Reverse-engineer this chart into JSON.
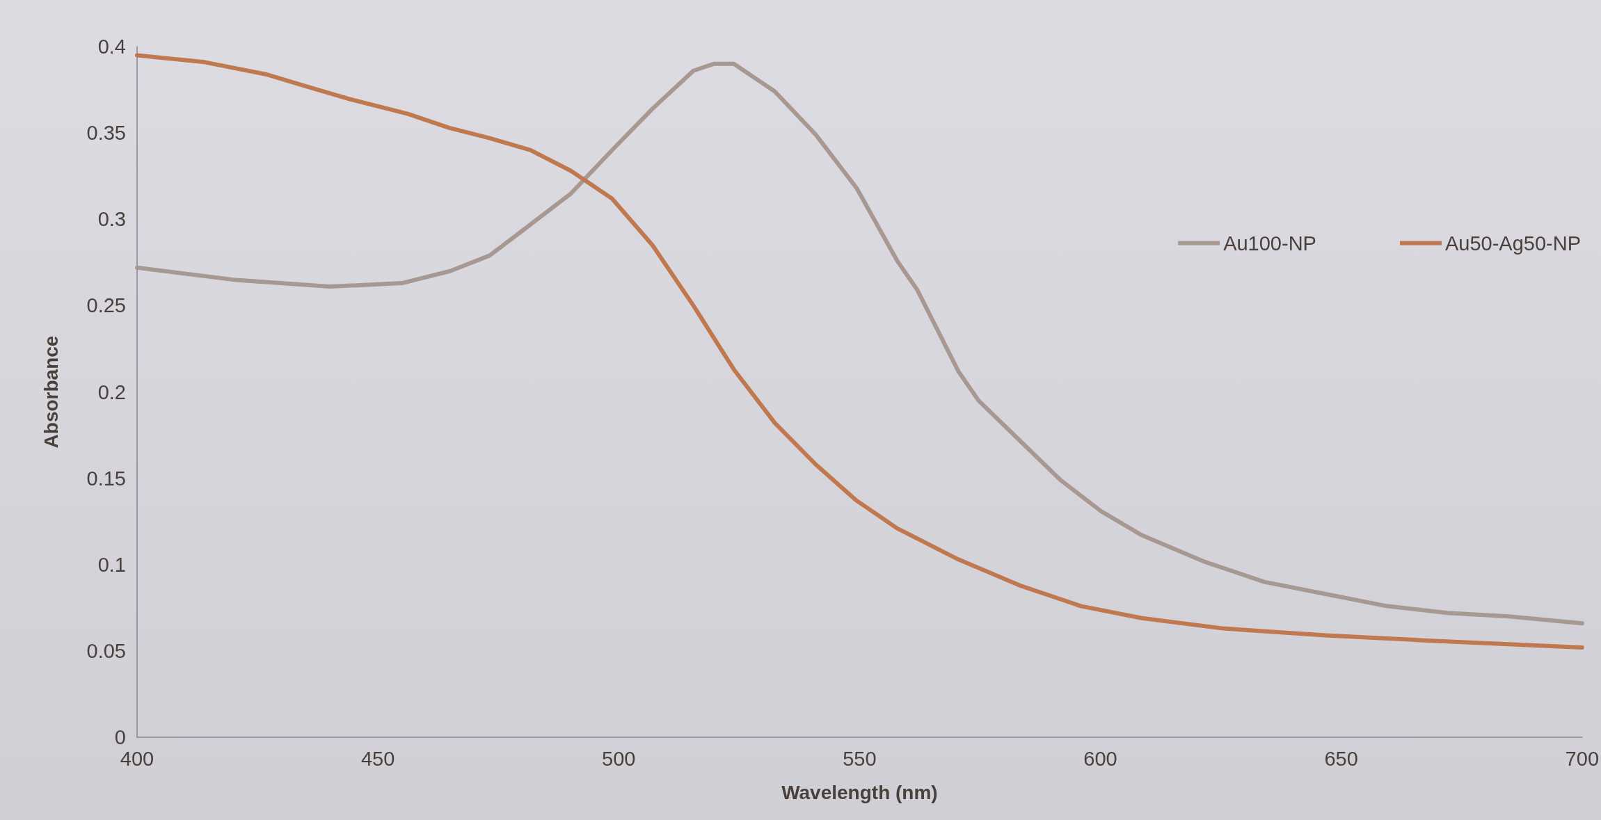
{
  "chart_data": {
    "type": "line",
    "xlabel": "Wavelength (nm)",
    "ylabel": "Absorbance",
    "xlim": [
      400,
      700
    ],
    "xticks": [
      400,
      450,
      500,
      550,
      600,
      650,
      700
    ],
    "ylim": [
      0,
      0.4
    ],
    "yticks": [
      0,
      0.05,
      0.1,
      0.15,
      0.2,
      0.25,
      0.3,
      0.35,
      0.4
    ],
    "grid": false,
    "legend": "right",
    "marker": "none",
    "line_style": "solid",
    "series": [
      {
        "name": "Au100-NP",
        "color": "#a89892",
        "x": [
          400,
          420,
          440,
          455,
          465,
          473.2,
          481.7,
          490.1,
          498.6,
          507,
          515.5,
          519.7,
          523.9,
          532.4,
          540.9,
          549.4,
          557.8,
          562,
          570.5,
          574.7,
          583.2,
          591.7,
          600.1,
          608.6,
          621.3,
          634,
          646.7,
          659.4,
          672,
          684.8,
          700
        ],
        "values": [
          0.272,
          0.265,
          0.261,
          0.263,
          0.27,
          0.279,
          0.297,
          0.315,
          0.34,
          0.364,
          0.386,
          0.39,
          0.39,
          0.374,
          0.349,
          0.318,
          0.276,
          0.259,
          0.212,
          0.195,
          0.172,
          0.149,
          0.131,
          0.117,
          0.102,
          0.09,
          0.083,
          0.076,
          0.072,
          0.07,
          0.066
        ]
      },
      {
        "name": "Au50-Ag50-NP",
        "color": "#c0784e",
        "x": [
          400,
          414,
          426.7,
          435.1,
          443.6,
          456.3,
          464.7,
          473.2,
          481.7,
          490.1,
          498.6,
          507,
          515.5,
          523.9,
          532.4,
          540.9,
          549.4,
          557.8,
          570.5,
          583.2,
          595.9,
          608.6,
          625.5,
          646.7,
          667.8,
          700
        ],
        "values": [
          0.395,
          0.391,
          0.384,
          0.377,
          0.37,
          0.361,
          0.353,
          0.347,
          0.34,
          0.328,
          0.312,
          0.285,
          0.25,
          0.213,
          0.182,
          0.158,
          0.137,
          0.121,
          0.103,
          0.088,
          0.076,
          0.069,
          0.063,
          0.059,
          0.056,
          0.052
        ]
      }
    ]
  }
}
